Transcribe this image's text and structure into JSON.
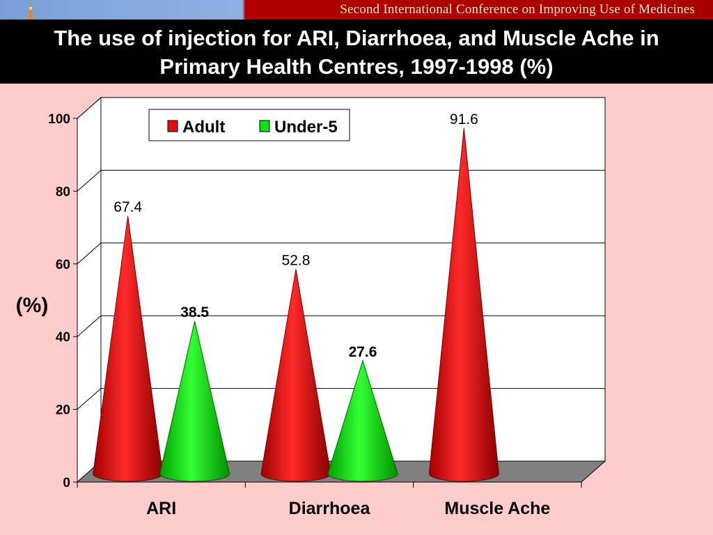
{
  "banner": {
    "text": "Second International Conference on Improving Use of Medicines"
  },
  "slide": {
    "title": "The use of injection for ARI, Diarrhoea, and Muscle Ache in Primary Health Centres, 1997-1998 (%)"
  },
  "colors": {
    "adult": "#e01010",
    "under5": "#10e010",
    "background": "#ffcccc",
    "title_bar": "#000000",
    "floor": "#808080"
  },
  "chart_data": {
    "type": "bar",
    "style": "3d-cone",
    "title": "",
    "xlabel": "",
    "ylabel": "(%)",
    "ylim": [
      0,
      100
    ],
    "yticks": [
      0,
      20,
      40,
      60,
      80,
      100
    ],
    "ytick_labels": [
      "0",
      "20",
      "40",
      "60",
      "80",
      "100"
    ],
    "grid": true,
    "legend_placement": "top-center",
    "categories": [
      "ARI",
      "Diarrhoea",
      "Muscle Ache"
    ],
    "series": [
      {
        "name": "Adult",
        "values": [
          67.4,
          52.8,
          91.6
        ],
        "labels": [
          "67.4",
          "52.8",
          "91.6"
        ]
      },
      {
        "name": "Under-5",
        "values": [
          38.5,
          27.6,
          null
        ],
        "labels": [
          "38.5",
          "27.6",
          ""
        ]
      }
    ]
  }
}
